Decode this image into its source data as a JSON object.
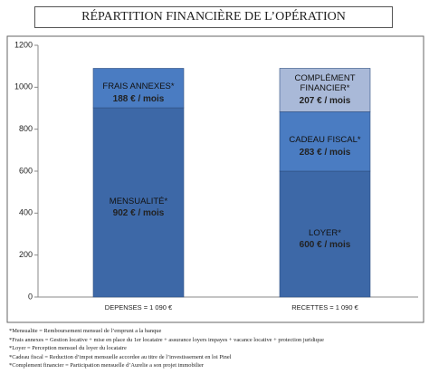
{
  "chart_data": {
    "type": "stacked-bar",
    "title": "RÉPARTITION FINANCIÈRE DE L’OPÉRATION",
    "categories": [
      "DEPENSES = 1 090 €",
      "RECETTES = 1 090 €"
    ],
    "series": [
      {
        "name": "MENSUALITÉ*",
        "color": "#3d68a7",
        "values": [
          902,
          null
        ],
        "value_labels": [
          "902  € / mois",
          null
        ]
      },
      {
        "name": "FRAIS ANNEXES*",
        "color": "#4a7cc2",
        "values": [
          188,
          null
        ],
        "value_labels": [
          "188 € / mois",
          null
        ]
      },
      {
        "name": "LOYER*",
        "color": "#3d68a7",
        "values": [
          null,
          600
        ],
        "value_labels": [
          null,
          "600 € / mois"
        ]
      },
      {
        "name": "CADEAU FISCAL*",
        "color": "#4a7cc2",
        "values": [
          null,
          283
        ],
        "value_labels": [
          null,
          "283 € / mois"
        ]
      },
      {
        "name": "COMPLÉMENT FINANCIER*",
        "color": "#a9b9d8",
        "values": [
          null,
          207
        ],
        "value_labels": [
          null,
          "207 € / mois"
        ]
      }
    ],
    "ylim": [
      0,
      1200
    ],
    "yticks": [
      0,
      200,
      400,
      600,
      800,
      1000,
      1200
    ],
    "grid": false,
    "notes": [
      "*Mensualite = Remboursement mensuel de l’emprunt a la banque",
      "*Frais annexes = Gestion locative + mise en place du 1er locataire + assurance loyers impayes + vacance locative + protection juridique",
      "*Loyer = Perception mensuel du loyer du locataire",
      "*Cadeau fiscal = Reduction d’impot mensuelle accordee au titre de l’investissement en loi Pinel",
      "*Complement financier = Participation mensuelle d’Aurelie a son projet immobilier"
    ]
  }
}
